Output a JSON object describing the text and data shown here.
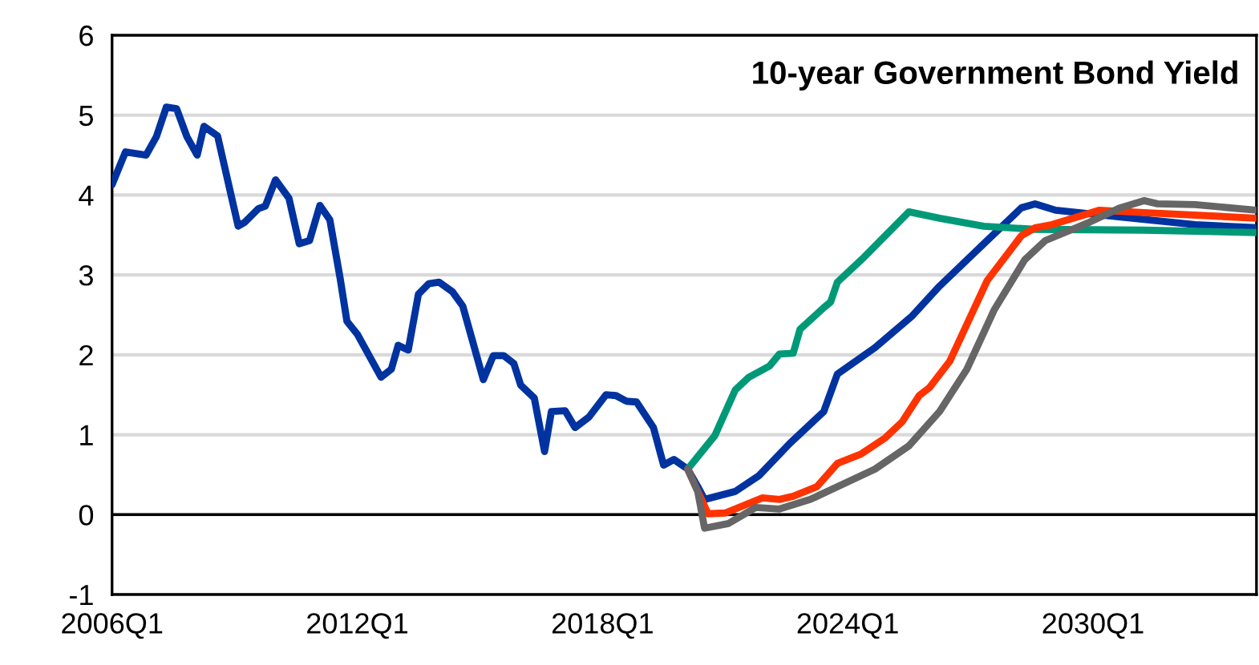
{
  "chart_data": {
    "type": "line",
    "title": "10-year Government Bond Yield",
    "xlim": [
      "2006-01",
      "2034-01"
    ],
    "xticks": [
      {
        "value": "2006-01",
        "label": "2006Q1"
      },
      {
        "value": "2012-01",
        "label": "2012Q1"
      },
      {
        "value": "2018-01",
        "label": "2018Q1"
      },
      {
        "value": "2024-01",
        "label": "2024Q1"
      },
      {
        "value": "2030-01",
        "label": "2030Q1"
      }
    ],
    "ylim": [
      -1,
      6
    ],
    "yticks": [
      -1,
      0,
      1,
      2,
      3,
      4,
      5,
      6
    ],
    "grid": "y",
    "legend": false,
    "marker": "none",
    "line_style": "solid",
    "ref_lines": [
      {
        "axis": "y",
        "value": 0,
        "color": "#000000"
      }
    ],
    "series": [
      {
        "color": "#0033a0",
        "x": [
          "2006-01",
          "2006-05",
          "2006-11",
          "2007-02",
          "2007-05",
          "2007-08",
          "2007-11",
          "2008-02",
          "2008-04",
          "2008-08",
          "2009-02",
          "2009-04",
          "2009-08",
          "2009-10",
          "2010-01",
          "2010-05",
          "2010-08",
          "2010-11",
          "2011-02",
          "2011-05",
          "2011-08",
          "2011-10",
          "2012-01",
          "2012-08",
          "2012-11",
          "2013-01",
          "2013-04",
          "2013-07",
          "2013-10",
          "2014-01",
          "2014-05",
          "2014-08",
          "2015-02",
          "2015-05",
          "2015-08",
          "2015-11",
          "2016-01",
          "2016-05",
          "2016-08",
          "2016-10",
          "2017-02",
          "2017-05",
          "2017-09",
          "2018-02",
          "2018-05",
          "2018-08",
          "2018-11",
          "2019-04",
          "2019-07",
          "2019-10",
          "2020-02",
          "2020-05",
          "2020-07",
          "2021-04",
          "2021-11",
          "2022-08",
          "2023-06",
          "2023-10",
          "2024-09",
          "2025-08",
          "2026-04",
          "2027-05",
          "2028-04",
          "2028-08",
          "2029-02",
          "2030-08",
          "2032-07",
          "2034-01"
        ],
        "values": [
          4.13,
          4.54,
          4.5,
          4.73,
          5.1,
          5.08,
          4.73,
          4.5,
          4.86,
          4.74,
          3.61,
          3.66,
          3.83,
          3.86,
          4.19,
          3.96,
          3.39,
          3.43,
          3.87,
          3.69,
          2.96,
          2.42,
          2.26,
          1.72,
          1.82,
          2.12,
          2.06,
          2.76,
          2.89,
          2.91,
          2.79,
          2.61,
          1.69,
          1.99,
          1.99,
          1.89,
          1.62,
          1.46,
          0.79,
          1.29,
          1.3,
          1.09,
          1.22,
          1.5,
          1.49,
          1.42,
          1.41,
          1.09,
          0.62,
          0.69,
          0.57,
          0.35,
          0.19,
          0.29,
          0.49,
          0.89,
          1.29,
          1.76,
          2.09,
          2.49,
          2.86,
          3.39,
          3.84,
          3.89,
          3.81,
          3.73,
          3.63,
          3.59
        ]
      },
      {
        "color": "#009977",
        "x": [
          "2020-02",
          "2020-10",
          "2021-04",
          "2021-08",
          "2022-02",
          "2022-05",
          "2022-09",
          "2022-11",
          "2023-06",
          "2023-08",
          "2023-10",
          "2024-06",
          "2025-07",
          "2026-04",
          "2027-05",
          "2028-08",
          "2031-04",
          "2034-01"
        ],
        "values": [
          0.57,
          0.99,
          1.56,
          1.72,
          1.86,
          2.01,
          2.02,
          2.32,
          2.59,
          2.66,
          2.91,
          3.23,
          3.79,
          3.71,
          3.61,
          3.57,
          3.56,
          3.53
        ]
      },
      {
        "color": "#ff3300",
        "x": [
          "2020-02",
          "2020-08",
          "2021-01",
          "2021-12",
          "2022-05",
          "2022-09",
          "2023-04",
          "2023-10",
          "2024-05",
          "2024-12",
          "2025-05",
          "2025-10",
          "2026-01",
          "2026-07",
          "2027-06",
          "2028-04",
          "2028-08",
          "2029-01",
          "2030-03",
          "2031-04",
          "2034-01"
        ],
        "values": [
          0.57,
          0.01,
          0.02,
          0.21,
          0.19,
          0.23,
          0.35,
          0.64,
          0.76,
          0.96,
          1.16,
          1.49,
          1.59,
          1.92,
          2.93,
          3.49,
          3.59,
          3.63,
          3.81,
          3.78,
          3.71
        ]
      },
      {
        "color": "#666666",
        "x": [
          "2020-02",
          "2020-05",
          "2020-07",
          "2021-02",
          "2021-10",
          "2022-05",
          "2023-02",
          "2023-12",
          "2024-09",
          "2025-07",
          "2026-04",
          "2026-12",
          "2027-08",
          "2028-05",
          "2028-11",
          "2029-12",
          "2030-09",
          "2031-04",
          "2031-08",
          "2032-07",
          "2034-01"
        ],
        "values": [
          0.57,
          0.29,
          -0.17,
          -0.11,
          0.09,
          0.07,
          0.19,
          0.39,
          0.57,
          0.86,
          1.29,
          1.82,
          2.56,
          3.19,
          3.43,
          3.66,
          3.84,
          3.93,
          3.89,
          3.88,
          3.81
        ]
      }
    ]
  }
}
